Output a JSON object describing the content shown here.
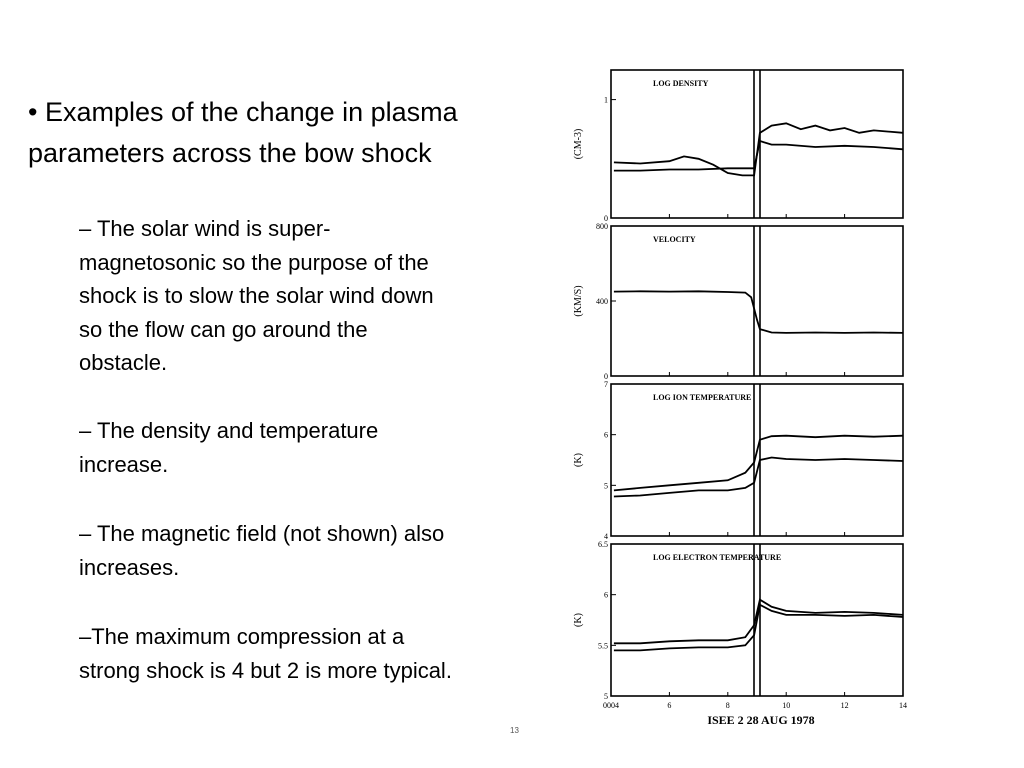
{
  "slide": {
    "main_bullet": "• Examples of the change in plasma parameters across the bow shock",
    "points": [
      "– The solar wind is super-magnetosonic so the purpose of the shock is to slow the solar wind down so the flow can go around the obstacle.",
      "– The density and temperature increase.",
      "–  The magnetic field (not shown) also increases.",
      "–The maximum compression at a strong shock is 4 but 2 is more typical."
    ],
    "page_mark": "13"
  },
  "chart_data": [
    {
      "type": "line",
      "title": "LOG DENSITY",
      "ylabel": "(CM-3)",
      "yticks": [
        "1",
        "0"
      ],
      "ylim": [
        0,
        1.25
      ],
      "xlim": [
        4,
        14
      ],
      "x_ticks_tokens": [
        6,
        8,
        10,
        12,
        14
      ],
      "shock_time": 9.0,
      "series": [
        {
          "points": [
            [
              4.1,
              0.4
            ],
            [
              5,
              0.4
            ],
            [
              6,
              0.41
            ],
            [
              7,
              0.41
            ],
            [
              8,
              0.42
            ],
            [
              8.9,
              0.42
            ],
            [
              9.1,
              0.65
            ],
            [
              9.5,
              0.62
            ],
            [
              10,
              0.62
            ],
            [
              11,
              0.6
            ],
            [
              12,
              0.61
            ],
            [
              13,
              0.6
            ],
            [
              14,
              0.58
            ]
          ]
        },
        {
          "points": [
            [
              4.1,
              0.47
            ],
            [
              5,
              0.46
            ],
            [
              6,
              0.48
            ],
            [
              6.5,
              0.52
            ],
            [
              7,
              0.5
            ],
            [
              7.5,
              0.45
            ],
            [
              8,
              0.38
            ],
            [
              8.5,
              0.36
            ],
            [
              8.9,
              0.36
            ],
            [
              9.1,
              0.72
            ],
            [
              9.5,
              0.78
            ],
            [
              10,
              0.8
            ],
            [
              10.5,
              0.75
            ],
            [
              11,
              0.78
            ],
            [
              11.5,
              0.74
            ],
            [
              12,
              0.76
            ],
            [
              12.5,
              0.72
            ],
            [
              13,
              0.74
            ],
            [
              14,
              0.72
            ]
          ]
        }
      ]
    },
    {
      "type": "line",
      "title": "VELOCITY",
      "ylabel": "(KM/S)",
      "yticks": [
        "800",
        "400",
        "0"
      ],
      "ylim": [
        0,
        800
      ],
      "xlim": [
        4,
        14
      ],
      "shock_time": 9.0,
      "series": [
        {
          "points": [
            [
              4.1,
              450
            ],
            [
              5,
              452
            ],
            [
              6,
              450
            ],
            [
              7,
              452
            ],
            [
              8,
              448
            ],
            [
              8.6,
              445
            ],
            [
              8.8,
              420
            ],
            [
              9.0,
              300
            ],
            [
              9.1,
              250
            ],
            [
              9.5,
              232
            ],
            [
              10,
              230
            ],
            [
              11,
              232
            ],
            [
              12,
              230
            ],
            [
              13,
              232
            ],
            [
              14,
              230
            ]
          ]
        }
      ]
    },
    {
      "type": "line",
      "title": "LOG ION TEMPERATURE",
      "ylabel": "(K)",
      "yticks": [
        "7",
        "6",
        "5",
        "4"
      ],
      "ylim": [
        4,
        7
      ],
      "xlim": [
        4,
        14
      ],
      "shock_time": 9.0,
      "series": [
        {
          "points": [
            [
              4.1,
              4.9
            ],
            [
              5,
              4.95
            ],
            [
              6,
              5.0
            ],
            [
              7,
              5.05
            ],
            [
              8,
              5.1
            ],
            [
              8.6,
              5.25
            ],
            [
              8.9,
              5.45
            ],
            [
              9.1,
              5.9
            ],
            [
              9.5,
              5.97
            ],
            [
              10,
              5.98
            ],
            [
              11,
              5.95
            ],
            [
              12,
              5.98
            ],
            [
              13,
              5.96
            ],
            [
              14,
              5.98
            ]
          ]
        },
        {
          "points": [
            [
              4.1,
              4.78
            ],
            [
              5,
              4.8
            ],
            [
              6,
              4.85
            ],
            [
              7,
              4.9
            ],
            [
              8,
              4.9
            ],
            [
              8.6,
              4.95
            ],
            [
              8.9,
              5.05
            ],
            [
              9.1,
              5.5
            ],
            [
              9.5,
              5.55
            ],
            [
              10,
              5.52
            ],
            [
              11,
              5.5
            ],
            [
              12,
              5.52
            ],
            [
              13,
              5.5
            ],
            [
              14,
              5.48
            ]
          ]
        }
      ]
    },
    {
      "type": "line",
      "title": "LOG ELECTRON TEMPERATURE",
      "ylabel": "(K)",
      "yticks": [
        "6.5",
        "6",
        "5.5",
        "5"
      ],
      "ylim": [
        5,
        6.5
      ],
      "xlim": [
        4,
        14
      ],
      "xticks": [
        "0004",
        "6",
        "8",
        "10",
        "12",
        "14"
      ],
      "xtick_values": [
        4,
        6,
        8,
        10,
        12,
        14
      ],
      "caption": "ISEE 2    28 AUG 1978",
      "shock_time": 9.0,
      "series": [
        {
          "points": [
            [
              4.1,
              5.52
            ],
            [
              5,
              5.52
            ],
            [
              6,
              5.54
            ],
            [
              7,
              5.55
            ],
            [
              8,
              5.55
            ],
            [
              8.6,
              5.58
            ],
            [
              8.9,
              5.7
            ],
            [
              9.1,
              5.95
            ],
            [
              9.5,
              5.88
            ],
            [
              10,
              5.84
            ],
            [
              11,
              5.82
            ],
            [
              12,
              5.83
            ],
            [
              13,
              5.82
            ],
            [
              14,
              5.8
            ]
          ]
        },
        {
          "points": [
            [
              4.1,
              5.45
            ],
            [
              5,
              5.45
            ],
            [
              6,
              5.47
            ],
            [
              7,
              5.48
            ],
            [
              8,
              5.48
            ],
            [
              8.6,
              5.5
            ],
            [
              8.9,
              5.6
            ],
            [
              9.1,
              5.9
            ],
            [
              9.5,
              5.84
            ],
            [
              10,
              5.8
            ],
            [
              11,
              5.8
            ],
            [
              12,
              5.79
            ],
            [
              13,
              5.8
            ],
            [
              14,
              5.78
            ]
          ]
        }
      ]
    }
  ]
}
